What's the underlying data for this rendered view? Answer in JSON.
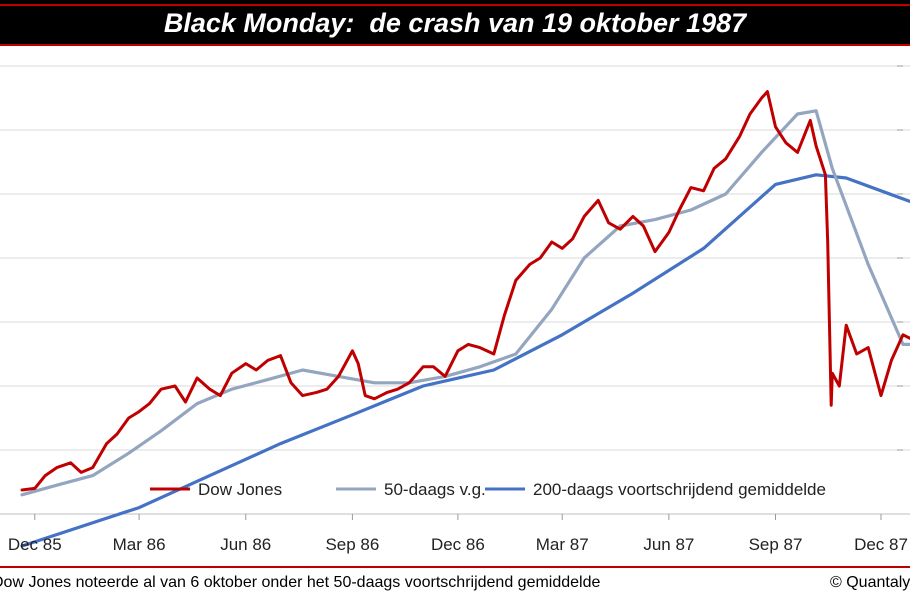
{
  "title": "Black Monday:  de crash van 19 oktober 1987",
  "footnote": "Dow Jones noteerde al van 6 oktober onder het 50-daags voortschrijdend gemiddelde",
  "copyright": "© Quantalys",
  "colors": {
    "dow": "#c00000",
    "ma50": "#94a5bf",
    "ma200": "#4472c4",
    "grid": "#d9d9d9",
    "title_bg": "#000000",
    "accent": "#c00000"
  },
  "chart_data": {
    "type": "line",
    "x_unit": "month",
    "x_range": [
      "1985-11",
      "1987-12"
    ],
    "y_range": [
      1400,
      2800
    ],
    "y_gridlines": [
      1400,
      1600,
      1800,
      2000,
      2200,
      2400,
      2600,
      2800
    ],
    "x_ticks": [
      {
        "x": "1985-12",
        "label": "Dec 85"
      },
      {
        "x": "1986-03",
        "label": "Mar 86"
      },
      {
        "x": "1986-06",
        "label": "Jun 86"
      },
      {
        "x": "1986-09",
        "label": "Sep 86"
      },
      {
        "x": "1986-12",
        "label": "Dec 86"
      },
      {
        "x": "1987-03",
        "label": "Mar 87"
      },
      {
        "x": "1987-06",
        "label": "Jun 87"
      },
      {
        "x": "1987-09",
        "label": "Sep 87"
      },
      {
        "x": "1987-12",
        "label": "Dec 87"
      }
    ],
    "legend_position": "bottom-right",
    "series": [
      {
        "name": "Dow Jones",
        "color": "#c00000",
        "points": [
          [
            "1985-11-20",
            1475
          ],
          [
            "1985-12-01",
            1480
          ],
          [
            "1985-12-10",
            1520
          ],
          [
            "1985-12-20",
            1545
          ],
          [
            "1986-01-01",
            1560
          ],
          [
            "1986-01-10",
            1530
          ],
          [
            "1986-01-20",
            1545
          ],
          [
            "1986-02-01",
            1620
          ],
          [
            "1986-02-10",
            1650
          ],
          [
            "1986-02-20",
            1700
          ],
          [
            "1986-03-01",
            1720
          ],
          [
            "1986-03-10",
            1745
          ],
          [
            "1986-03-20",
            1790
          ],
          [
            "1986-04-01",
            1800
          ],
          [
            "1986-04-10",
            1750
          ],
          [
            "1986-04-20",
            1825
          ],
          [
            "1986-05-01",
            1790
          ],
          [
            "1986-05-10",
            1770
          ],
          [
            "1986-05-20",
            1840
          ],
          [
            "1986-06-01",
            1870
          ],
          [
            "1986-06-10",
            1850
          ],
          [
            "1986-06-20",
            1880
          ],
          [
            "1986-07-01",
            1895
          ],
          [
            "1986-07-10",
            1810
          ],
          [
            "1986-07-20",
            1770
          ],
          [
            "1986-08-01",
            1780
          ],
          [
            "1986-08-10",
            1790
          ],
          [
            "1986-08-20",
            1830
          ],
          [
            "1986-09-01",
            1910
          ],
          [
            "1986-09-06",
            1870
          ],
          [
            "1986-09-12",
            1770
          ],
          [
            "1986-09-20",
            1760
          ],
          [
            "1986-10-01",
            1780
          ],
          [
            "1986-10-10",
            1790
          ],
          [
            "1986-10-20",
            1810
          ],
          [
            "1986-11-01",
            1860
          ],
          [
            "1986-11-10",
            1860
          ],
          [
            "1986-11-20",
            1830
          ],
          [
            "1986-12-01",
            1910
          ],
          [
            "1986-12-10",
            1930
          ],
          [
            "1986-12-20",
            1920
          ],
          [
            "1987-01-01",
            1900
          ],
          [
            "1987-01-10",
            2020
          ],
          [
            "1987-01-20",
            2130
          ],
          [
            "1987-02-01",
            2180
          ],
          [
            "1987-02-10",
            2200
          ],
          [
            "1987-02-20",
            2250
          ],
          [
            "1987-03-01",
            2230
          ],
          [
            "1987-03-10",
            2260
          ],
          [
            "1987-03-20",
            2330
          ],
          [
            "1987-04-01",
            2380
          ],
          [
            "1987-04-10",
            2310
          ],
          [
            "1987-04-20",
            2290
          ],
          [
            "1987-05-01",
            2330
          ],
          [
            "1987-05-10",
            2300
          ],
          [
            "1987-05-20",
            2220
          ],
          [
            "1987-06-01",
            2280
          ],
          [
            "1987-06-10",
            2350
          ],
          [
            "1987-06-20",
            2420
          ],
          [
            "1987-07-01",
            2410
          ],
          [
            "1987-07-10",
            2480
          ],
          [
            "1987-07-20",
            2510
          ],
          [
            "1987-08-01",
            2580
          ],
          [
            "1987-08-10",
            2650
          ],
          [
            "1987-08-20",
            2700
          ],
          [
            "1987-08-25",
            2720
          ],
          [
            "1987-09-01",
            2610
          ],
          [
            "1987-09-10",
            2560
          ],
          [
            "1987-09-20",
            2530
          ],
          [
            "1987-10-01",
            2630
          ],
          [
            "1987-10-06",
            2550
          ],
          [
            "1987-10-14",
            2460
          ],
          [
            "1987-10-16",
            2250
          ],
          [
            "1987-10-19",
            1740
          ],
          [
            "1987-10-20",
            1840
          ],
          [
            "1987-10-26",
            1800
          ],
          [
            "1987-11-01",
            1990
          ],
          [
            "1987-11-10",
            1900
          ],
          [
            "1987-11-20",
            1920
          ],
          [
            "1987-12-01",
            1770
          ],
          [
            "1987-12-10",
            1880
          ],
          [
            "1987-12-20",
            1960
          ],
          [
            "1987-12-31",
            1940
          ]
        ]
      },
      {
        "name": "50-daags v.g.",
        "color": "#94a5bf",
        "points": [
          [
            "1985-11-20",
            1460
          ],
          [
            "1985-12-20",
            1490
          ],
          [
            "1986-01-20",
            1520
          ],
          [
            "1986-02-20",
            1590
          ],
          [
            "1986-03-20",
            1660
          ],
          [
            "1986-04-20",
            1745
          ],
          [
            "1986-05-20",
            1790
          ],
          [
            "1986-06-20",
            1820
          ],
          [
            "1986-07-20",
            1850
          ],
          [
            "1986-08-20",
            1830
          ],
          [
            "1986-09-20",
            1810
          ],
          [
            "1986-10-20",
            1810
          ],
          [
            "1986-11-20",
            1830
          ],
          [
            "1986-12-20",
            1860
          ],
          [
            "1987-01-20",
            1900
          ],
          [
            "1987-02-20",
            2040
          ],
          [
            "1987-03-20",
            2200
          ],
          [
            "1987-04-20",
            2300
          ],
          [
            "1987-05-20",
            2320
          ],
          [
            "1987-06-20",
            2350
          ],
          [
            "1987-07-20",
            2400
          ],
          [
            "1987-08-20",
            2530
          ],
          [
            "1987-09-20",
            2650
          ],
          [
            "1987-10-06",
            2660
          ],
          [
            "1987-10-20",
            2480
          ],
          [
            "1987-11-20",
            2180
          ],
          [
            "1987-12-20",
            1930
          ],
          [
            "1987-12-31",
            1930
          ]
        ]
      },
      {
        "name": "200-daags voortschrijdend gemiddelde",
        "color": "#4472c4",
        "points": [
          [
            "1985-11-20",
            1300
          ],
          [
            "1986-01-01",
            1350
          ],
          [
            "1986-03-01",
            1420
          ],
          [
            "1986-05-01",
            1520
          ],
          [
            "1986-07-01",
            1620
          ],
          [
            "1986-09-01",
            1710
          ],
          [
            "1986-11-01",
            1800
          ],
          [
            "1987-01-01",
            1850
          ],
          [
            "1987-03-01",
            1960
          ],
          [
            "1987-05-01",
            2090
          ],
          [
            "1987-07-01",
            2230
          ],
          [
            "1987-09-01",
            2430
          ],
          [
            "1987-10-06",
            2460
          ],
          [
            "1987-11-01",
            2450
          ],
          [
            "1987-12-31",
            2370
          ]
        ]
      }
    ]
  }
}
